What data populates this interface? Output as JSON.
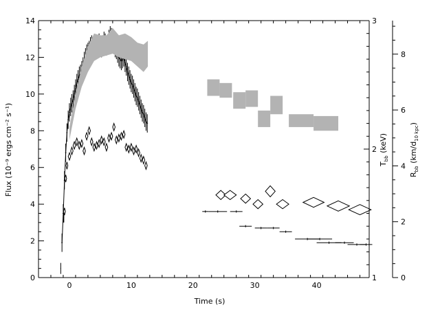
{
  "chart_data": {
    "type": "scatter",
    "title": "",
    "xlabel": "Time (s)",
    "ylabel": "Flux (10⁻⁹ ergs cm⁻² s⁻¹)",
    "ylabel_right_inner": "T",
    "ylabel_right_inner_sub": "bb",
    "ylabel_right_inner_unit": " (keV)",
    "ylabel_right_outer": "R",
    "ylabel_right_outer_sub": "bb",
    "ylabel_right_outer_unit": " (km/d",
    "ylabel_right_outer_unit_sub": "10 kpc",
    "ylabel_right_outer_unit_end": ")",
    "xlim": [
      -5,
      48.5
    ],
    "ylim": [
      0,
      14
    ],
    "ylim_right_inner": [
      1,
      3
    ],
    "ylim_right_outer": [
      0,
      9.2
    ],
    "x_ticks": [
      0,
      10,
      20,
      30,
      40
    ],
    "y_ticks": [
      0,
      2,
      4,
      6,
      8,
      10,
      12,
      14
    ],
    "y_right_inner_ticks": [
      1,
      2,
      3
    ],
    "y_right_outer_ticks": [
      0,
      2,
      4,
      6,
      8
    ],
    "grid": false,
    "series": [
      {
        "type": "errorbar",
        "x": [
          -1.2,
          -1.0,
          -0.8,
          -0.6,
          -0.4,
          -0.2,
          0.0,
          0.2,
          0.4,
          0.6,
          0.8,
          1.0,
          1.2,
          1.4,
          1.6,
          1.8,
          2.0,
          2.2,
          2.4,
          2.6,
          2.8,
          3.0,
          3.2,
          3.4,
          3.6,
          3.8,
          4.0,
          4.2,
          4.4,
          4.6,
          4.8,
          5.0,
          5.2,
          5.4,
          5.6,
          5.8,
          6.0,
          6.2,
          6.4,
          6.6,
          6.8,
          7.0,
          7.2,
          7.4,
          7.6,
          7.8,
          8.0,
          8.2,
          8.4,
          8.6,
          8.8,
          9.0,
          9.2,
          9.4,
          9.6,
          9.8,
          10.0,
          10.2,
          10.4,
          10.6,
          10.8,
          11.0,
          11.2,
          11.4,
          11.6,
          11.8,
          12.0,
          12.2,
          12.4,
          12.6
        ],
        "y": [
          1.9,
          3.5,
          5.3,
          6.8,
          7.9,
          8.6,
          9.0,
          9.3,
          9.5,
          9.7,
          10.0,
          10.3,
          10.6,
          10.8,
          11.0,
          11.1,
          11.3,
          11.5,
          11.8,
          12.0,
          12.2,
          12.3,
          12.4,
          12.6,
          12.7,
          12.5,
          12.4,
          12.6,
          12.5,
          12.7,
          12.8,
          12.6,
          12.5,
          12.7,
          12.9,
          12.8,
          12.6,
          12.7,
          13.0,
          13.2,
          13.1,
          12.9,
          12.8,
          12.5,
          12.4,
          12.2,
          12.0,
          11.9,
          11.8,
          11.9,
          12.0,
          11.7,
          11.5,
          11.2,
          11.0,
          10.8,
          10.6,
          10.5,
          10.3,
          10.1,
          9.9,
          9.8,
          9.6,
          9.4,
          9.2,
          9.0,
          8.9,
          8.7,
          8.5,
          8.4
        ],
        "xerr": 0.1,
        "yerr": 0.5
      },
      {
        "type": "errorbar",
        "x": [
          -1.4,
          -0.9,
          22.0,
          24.0,
          27.0,
          28.5,
          31.0,
          33.0,
          35.0,
          38.5,
          40.5,
          42.0,
          44.5,
          46.5,
          48.0
        ],
        "y": [
          0.5,
          3.3,
          3.6,
          3.6,
          3.6,
          2.8,
          2.7,
          2.7,
          2.5,
          2.1,
          2.1,
          1.9,
          1.9,
          1.8,
          1.8
        ],
        "xerr": [
          0.05,
          0.05,
          0.5,
          1.5,
          1.0,
          1.0,
          1.0,
          1.0,
          1.0,
          2.0,
          2.0,
          2.0,
          1.5,
          1.5,
          1.0
        ],
        "yerr": [
          0.3,
          0.3,
          0.06,
          0.06,
          0.06,
          0.06,
          0.06,
          0.06,
          0.06,
          0.06,
          0.06,
          0.06,
          0.06,
          0.06,
          0.06
        ]
      },
      {
        "type": "band",
        "x": [
          0.0,
          1.0,
          2.0,
          3.0,
          4.0,
          5.0,
          6.0,
          7.0,
          8.0,
          9.0,
          10.0,
          11.0,
          12.0,
          12.7
        ],
        "y_low": [
          7.5,
          9.2,
          10.4,
          11.2,
          11.8,
          12.0,
          12.1,
          12.2,
          12.0,
          11.9,
          11.8,
          11.5,
          11.2,
          11.5
        ],
        "y_high": [
          8.2,
          10.0,
          11.5,
          12.6,
          13.3,
          13.2,
          13.2,
          13.6,
          13.2,
          13.3,
          13.1,
          12.8,
          12.7,
          12.9
        ]
      },
      {
        "type": "boxes",
        "x_low": [
          22.3,
          24.3,
          26.5,
          28.5,
          30.5,
          32.5,
          35.5,
          39.5
        ],
        "x_high": [
          24.3,
          26.3,
          28.5,
          30.5,
          32.5,
          34.5,
          39.5,
          43.5
        ],
        "y_low": [
          9.9,
          9.8,
          9.2,
          9.3,
          8.2,
          8.9,
          8.2,
          8.0
        ],
        "y_high": [
          10.8,
          10.6,
          10.1,
          10.2,
          9.1,
          9.9,
          8.9,
          8.8
        ]
      },
      {
        "type": "diamonds",
        "x": [
          -0.8,
          -0.6,
          -0.4,
          0.0,
          0.4,
          0.8,
          1.2,
          1.6,
          2.0,
          2.4,
          2.8,
          3.2,
          3.6,
          4.0,
          4.4,
          4.8,
          5.2,
          5.6,
          6.0,
          6.4,
          6.8,
          7.2,
          7.6,
          8.0,
          8.4,
          8.8,
          9.2,
          9.6,
          10.0,
          10.4,
          10.8,
          11.2,
          11.6,
          12.0,
          12.4,
          24.5,
          26.0,
          28.5,
          30.5,
          32.5,
          34.5,
          39.5,
          43.5,
          47.0
        ],
        "y": [
          3.6,
          5.4,
          6.1,
          6.6,
          6.9,
          7.2,
          7.4,
          7.2,
          7.3,
          6.9,
          7.7,
          8.0,
          7.4,
          7.1,
          7.2,
          7.3,
          7.5,
          7.4,
          7.1,
          7.6,
          7.7,
          8.2,
          7.5,
          7.6,
          7.7,
          7.8,
          7.1,
          7.0,
          7.1,
          6.9,
          7.0,
          6.8,
          6.5,
          6.4,
          6.1,
          4.5,
          4.5,
          4.3,
          4.0,
          4.7,
          4.0,
          4.1,
          3.9,
          3.7
        ],
        "half_w": [
          0.15,
          0.15,
          0.15,
          0.2,
          0.2,
          0.2,
          0.2,
          0.2,
          0.2,
          0.2,
          0.2,
          0.2,
          0.2,
          0.2,
          0.2,
          0.2,
          0.2,
          0.2,
          0.2,
          0.2,
          0.2,
          0.2,
          0.2,
          0.2,
          0.2,
          0.2,
          0.2,
          0.2,
          0.2,
          0.2,
          0.2,
          0.2,
          0.2,
          0.2,
          0.2,
          0.8,
          1.0,
          0.8,
          0.8,
          0.8,
          1.0,
          1.7,
          1.8,
          1.8
        ],
        "half_h": [
          0.2,
          0.2,
          0.2,
          0.2,
          0.2,
          0.2,
          0.2,
          0.2,
          0.2,
          0.2,
          0.2,
          0.2,
          0.2,
          0.2,
          0.2,
          0.2,
          0.2,
          0.2,
          0.2,
          0.2,
          0.2,
          0.2,
          0.2,
          0.2,
          0.2,
          0.2,
          0.2,
          0.2,
          0.2,
          0.2,
          0.2,
          0.2,
          0.2,
          0.2,
          0.2,
          0.25,
          0.25,
          0.25,
          0.25,
          0.3,
          0.25,
          0.27,
          0.28,
          0.28
        ]
      }
    ]
  }
}
